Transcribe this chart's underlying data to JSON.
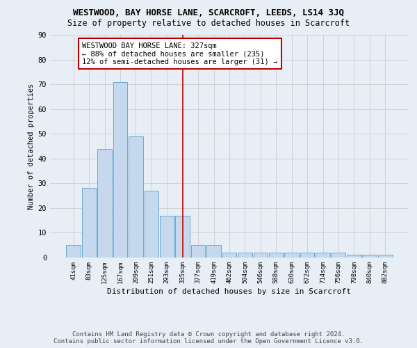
{
  "title": "WESTWOOD, BAY HORSE LANE, SCARCROFT, LEEDS, LS14 3JQ",
  "subtitle": "Size of property relative to detached houses in Scarcroft",
  "xlabel": "Distribution of detached houses by size in Scarcroft",
  "ylabel": "Number of detached properties",
  "categories": [
    "41sqm",
    "83sqm",
    "125sqm",
    "167sqm",
    "209sqm",
    "251sqm",
    "293sqm",
    "335sqm",
    "377sqm",
    "419sqm",
    "462sqm",
    "504sqm",
    "546sqm",
    "588sqm",
    "630sqm",
    "672sqm",
    "714sqm",
    "756sqm",
    "798sqm",
    "840sqm",
    "882sqm"
  ],
  "values": [
    5,
    28,
    44,
    71,
    49,
    27,
    17,
    17,
    5,
    5,
    2,
    2,
    2,
    2,
    2,
    2,
    2,
    2,
    1,
    1,
    1
  ],
  "bar_color": "#c5d8ee",
  "bar_edge_color": "#6aaad4",
  "property_line_x": 7.0,
  "property_line_color": "#c00000",
  "annotation_text": "WESTWOOD BAY HORSE LANE: 327sqm\n← 88% of detached houses are smaller (235)\n12% of semi-detached houses are larger (31) →",
  "annotation_box_color": "#ffffff",
  "annotation_box_edge_color": "#c00000",
  "ylim": [
    0,
    90
  ],
  "yticks": [
    0,
    10,
    20,
    30,
    40,
    50,
    60,
    70,
    80,
    90
  ],
  "grid_color": "#cccccc",
  "bg_color": "#e8eef5",
  "footer_line1": "Contains HM Land Registry data © Crown copyright and database right 2024.",
  "footer_line2": "Contains public sector information licensed under the Open Government Licence v3.0.",
  "title_fontsize": 9,
  "subtitle_fontsize": 8.5,
  "annotation_fontsize": 7.5,
  "footer_fontsize": 6.5
}
